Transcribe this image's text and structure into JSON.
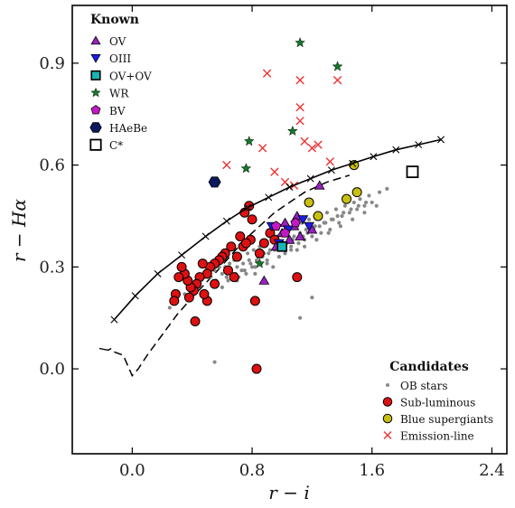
{
  "chart_data": {
    "type": "scatter",
    "xlabel": "r − i",
    "ylabel": "r − Hα",
    "xlim": [
      -0.4,
      2.5
    ],
    "ylim": [
      -0.25,
      1.07
    ],
    "xticks": [
      0.0,
      0.8,
      1.6,
      2.4
    ],
    "xtick_labels": [
      "0.0",
      "0.8",
      "1.6",
      "2.4"
    ],
    "yticks": [
      0.0,
      0.3,
      0.6,
      0.9
    ],
    "ytick_labels": [
      "0.0",
      "0.3",
      "0.6",
      "0.9"
    ],
    "grid": false,
    "legends": {
      "known": {
        "title": "Known",
        "placement": "top-left",
        "entries": [
          {
            "label": "OV",
            "marker": "triangle-up",
            "color": "#9b1fc4"
          },
          {
            "label": "OIII",
            "marker": "triangle-down",
            "color": "#1c1cf0"
          },
          {
            "label": "OV+OV",
            "marker": "square",
            "color": "#19b5b5"
          },
          {
            "label": "WR",
            "marker": "star",
            "color": "#127a2a"
          },
          {
            "label": "BV",
            "marker": "pentagon",
            "color": "#c419c4"
          },
          {
            "label": "HAeBe",
            "marker": "hexagon",
            "color": "#0a1a5c"
          },
          {
            "label": "C*",
            "marker": "square-open",
            "color": "#000000"
          }
        ]
      },
      "candidates": {
        "title": "Candidates",
        "placement": "bottom-right",
        "entries": [
          {
            "label": "OB stars",
            "marker": "dot",
            "color": "#888888"
          },
          {
            "label": "Sub-luminous",
            "marker": "circle",
            "color": "#dd1111"
          },
          {
            "label": "Blue supergiants",
            "marker": "circle",
            "color": "#c8c010"
          },
          {
            "label": "Emission-line",
            "marker": "x",
            "color": "#ee3333"
          }
        ]
      }
    },
    "lines": {
      "main_sequence": {
        "style": "solid-with-x",
        "x": [
          -0.12,
          0.02,
          0.17,
          0.33,
          0.49,
          0.63,
          0.77,
          0.91,
          1.05,
          1.19,
          1.33,
          1.47,
          1.61,
          1.76,
          1.91,
          2.06
        ],
        "y": [
          0.145,
          0.215,
          0.28,
          0.335,
          0.39,
          0.435,
          0.475,
          0.505,
          0.535,
          0.56,
          0.585,
          0.605,
          0.625,
          0.645,
          0.66,
          0.675
        ]
      },
      "giant_track": {
        "style": "dashed",
        "x": [
          -0.12,
          -0.06,
          0.0,
          0.04,
          0.1,
          0.2,
          0.3,
          0.42,
          0.55,
          0.65,
          0.75,
          0.85,
          0.95,
          1.05,
          1.15,
          1.3,
          1.45
        ],
        "y": [
          0.05,
          0.04,
          -0.02,
          0.0,
          0.04,
          0.1,
          0.16,
          0.22,
          0.28,
          0.33,
          0.38,
          0.42,
          0.46,
          0.49,
          0.52,
          0.55,
          0.57
        ]
      },
      "short_tail": {
        "style": "solid",
        "x": [
          -0.22,
          -0.16,
          -0.14
        ],
        "y": [
          0.06,
          0.055,
          0.06
        ]
      }
    },
    "series": [
      {
        "name": "OB stars",
        "marker": "dot",
        "x": [
          0.25,
          0.3,
          0.35,
          0.4,
          0.45,
          0.48,
          0.5,
          0.52,
          0.55,
          0.56,
          0.58,
          0.6,
          0.62,
          0.63,
          0.65,
          0.66,
          0.68,
          0.7,
          0.71,
          0.72,
          0.74,
          0.75,
          0.77,
          0.78,
          0.8,
          0.81,
          0.82,
          0.84,
          0.85,
          0.86,
          0.88,
          0.89,
          0.9,
          0.92,
          0.93,
          0.94,
          0.96,
          0.97,
          0.98,
          1.0,
          1.01,
          1.02,
          1.04,
          1.05,
          1.06,
          1.08,
          1.09,
          1.1,
          1.12,
          1.13,
          1.15,
          1.16,
          1.18,
          1.2,
          1.22,
          1.24,
          1.26,
          1.28,
          1.3,
          1.32,
          1.34,
          1.36,
          1.38,
          1.4,
          1.42,
          1.45,
          1.48,
          1.5,
          1.52,
          1.55,
          1.58,
          1.6,
          1.65,
          1.7,
          0.6,
          0.64,
          0.69,
          0.73,
          0.79,
          0.83,
          0.87,
          0.91,
          0.95,
          0.99,
          1.03,
          1.07,
          1.11,
          1.14,
          1.17,
          1.21,
          1.25,
          1.29,
          1.33,
          1.37,
          1.41,
          1.46,
          1.51,
          1.56,
          0.7,
          0.76,
          0.82,
          0.9,
          0.98,
          1.06,
          1.15,
          1.23,
          1.31,
          1.39,
          1.47,
          1.55,
          1.63,
          1.12,
          0.55,
          1.2
        ],
        "y": [
          0.18,
          0.21,
          0.22,
          0.25,
          0.26,
          0.27,
          0.28,
          0.27,
          0.29,
          0.26,
          0.3,
          0.28,
          0.3,
          0.27,
          0.31,
          0.29,
          0.32,
          0.3,
          0.27,
          0.33,
          0.31,
          0.29,
          0.34,
          0.32,
          0.3,
          0.35,
          0.28,
          0.33,
          0.36,
          0.31,
          0.34,
          0.37,
          0.32,
          0.35,
          0.38,
          0.3,
          0.36,
          0.39,
          0.33,
          0.37,
          0.4,
          0.34,
          0.38,
          0.41,
          0.36,
          0.39,
          0.42,
          0.35,
          0.4,
          0.43,
          0.38,
          0.41,
          0.44,
          0.39,
          0.42,
          0.45,
          0.4,
          0.43,
          0.46,
          0.41,
          0.44,
          0.47,
          0.43,
          0.45,
          0.48,
          0.46,
          0.49,
          0.47,
          0.5,
          0.48,
          0.51,
          0.49,
          0.52,
          0.53,
          0.24,
          0.26,
          0.28,
          0.29,
          0.31,
          0.32,
          0.33,
          0.34,
          0.35,
          0.36,
          0.37,
          0.38,
          0.37,
          0.39,
          0.4,
          0.41,
          0.42,
          0.43,
          0.44,
          0.45,
          0.46,
          0.47,
          0.48,
          0.49,
          0.26,
          0.28,
          0.3,
          0.31,
          0.33,
          0.35,
          0.36,
          0.38,
          0.4,
          0.42,
          0.44,
          0.46,
          0.48,
          0.15,
          0.02,
          0.21
        ]
      },
      {
        "name": "Sub-luminous",
        "marker": "circle",
        "x": [
          0.75,
          0.78,
          0.8,
          0.72,
          0.66,
          0.62,
          0.6,
          0.58,
          0.55,
          0.52,
          0.5,
          0.47,
          0.45,
          0.43,
          0.41,
          0.39,
          0.37,
          0.35,
          0.33,
          0.31,
          0.29,
          0.28,
          0.42,
          0.5,
          0.55,
          0.64,
          0.7,
          0.74,
          0.68,
          0.48,
          0.38,
          0.82,
          0.85,
          0.79,
          0.88,
          0.92,
          0.95,
          1.1,
          0.83,
          0.76
        ],
        "y": [
          0.46,
          0.48,
          0.44,
          0.39,
          0.36,
          0.34,
          0.33,
          0.32,
          0.31,
          0.3,
          0.28,
          0.31,
          0.27,
          0.25,
          0.23,
          0.24,
          0.26,
          0.28,
          0.3,
          0.27,
          0.22,
          0.2,
          0.14,
          0.2,
          0.25,
          0.29,
          0.33,
          0.36,
          0.27,
          0.22,
          0.21,
          0.2,
          0.34,
          0.38,
          0.37,
          0.4,
          0.38,
          0.27,
          0.0,
          0.37
        ]
      },
      {
        "name": "Blue supergiants",
        "marker": "circle",
        "x": [
          1.48,
          1.5,
          1.43,
          1.18,
          1.24
        ],
        "y": [
          0.6,
          0.52,
          0.5,
          0.49,
          0.45
        ]
      },
      {
        "name": "Emission-line",
        "marker": "x",
        "x": [
          0.9,
          1.12,
          1.37,
          1.12,
          1.12,
          1.15,
          1.2,
          1.24,
          1.32,
          0.87,
          1.02,
          1.08,
          0.95,
          0.63
        ],
        "y": [
          0.87,
          0.85,
          0.85,
          0.77,
          0.73,
          0.67,
          0.65,
          0.66,
          0.61,
          0.65,
          0.55,
          0.54,
          0.58,
          0.6
        ]
      },
      {
        "name": "OV",
        "marker": "triangle-up",
        "x": [
          1.0,
          1.05,
          1.12,
          1.08,
          1.2,
          0.96,
          1.02,
          1.25,
          0.88,
          1.1
        ],
        "y": [
          0.4,
          0.38,
          0.39,
          0.42,
          0.41,
          0.36,
          0.43,
          0.54,
          0.26,
          0.45
        ]
      },
      {
        "name": "OIII",
        "marker": "triangle-down",
        "x": [
          0.93,
          1.04,
          1.14,
          0.98,
          1.18
        ],
        "y": [
          0.42,
          0.41,
          0.44,
          0.37,
          0.42
        ]
      },
      {
        "name": "OV+OV",
        "marker": "square",
        "x": [
          1.0
        ],
        "y": [
          0.36
        ]
      },
      {
        "name": "WR",
        "marker": "star",
        "x": [
          1.12,
          1.37,
          0.78,
          0.76,
          1.07,
          0.85
        ],
        "y": [
          0.96,
          0.89,
          0.67,
          0.59,
          0.7,
          0.31
        ]
      },
      {
        "name": "BV",
        "marker": "pentagon",
        "x": [
          0.96,
          1.02,
          1.09
        ],
        "y": [
          0.42,
          0.4,
          0.43
        ]
      },
      {
        "name": "HAeBe",
        "marker": "hexagon",
        "x": [
          0.55
        ],
        "y": [
          0.55
        ]
      },
      {
        "name": "C*",
        "marker": "square-open",
        "x": [
          1.87
        ],
        "y": [
          0.58
        ]
      }
    ]
  }
}
